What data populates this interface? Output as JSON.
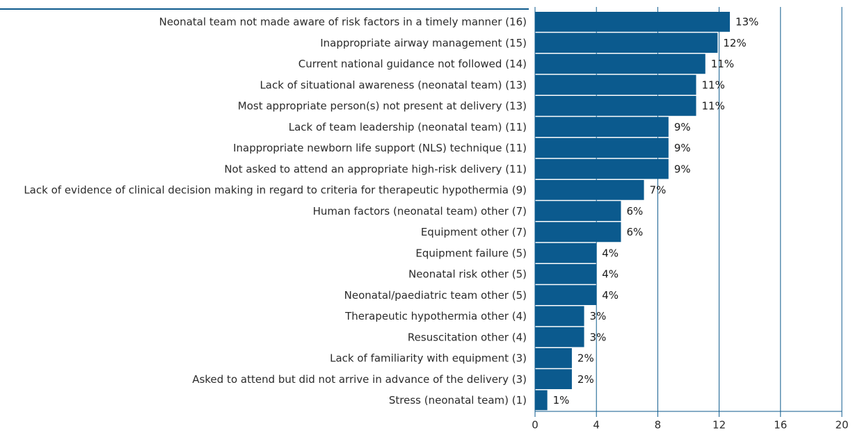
{
  "chart_data": {
    "type": "bar",
    "orientation": "horizontal",
    "categories": [
      "Neonatal team not made aware of risk factors in a timely manner (16)",
      "Inappropriate airway management (15)",
      "Current national guidance not followed (14)",
      "Lack of situational awareness (neonatal team) (13)",
      "Most appropriate person(s) not present at delivery (13)",
      "Lack of team leadership (neonatal team) (11)",
      "Inappropriate newborn life support (NLS) technique (11)",
      "Not asked to attend an appropriate high-risk delivery (11)",
      "Lack of evidence of clinical decision making in regard to criteria for therapeutic hypothermia (9)",
      "Human factors (neonatal team) other (7)",
      "Equipment other (7)",
      "Equipment failure (5)",
      "Neonatal risk other (5)",
      "Neonatal/paediatric team other (5)",
      "Therapeutic hypothermia other (4)",
      "Resuscitation other (4)",
      "Lack of familiarity with equipment (3)",
      "Asked to attend but did not arrive in advance of the delivery (3)",
      "Stress (neonatal team) (1)"
    ],
    "values": [
      12.7,
      11.9,
      11.1,
      10.5,
      10.5,
      8.7,
      8.7,
      8.7,
      7.1,
      5.6,
      5.6,
      4.0,
      4.0,
      4.0,
      3.2,
      3.2,
      2.4,
      2.4,
      0.8
    ],
    "value_labels": [
      "13%",
      "12%",
      "11%",
      "11%",
      "11%",
      "9%",
      "9%",
      "9%",
      "7%",
      "6%",
      "6%",
      "4%",
      "4%",
      "4%",
      "3%",
      "3%",
      "2%",
      "2%",
      "1%"
    ],
    "color": "#0b5a8e",
    "xlim": [
      0,
      20
    ],
    "xticks": [
      0,
      4,
      8,
      12,
      16,
      20
    ],
    "grid": true
  }
}
